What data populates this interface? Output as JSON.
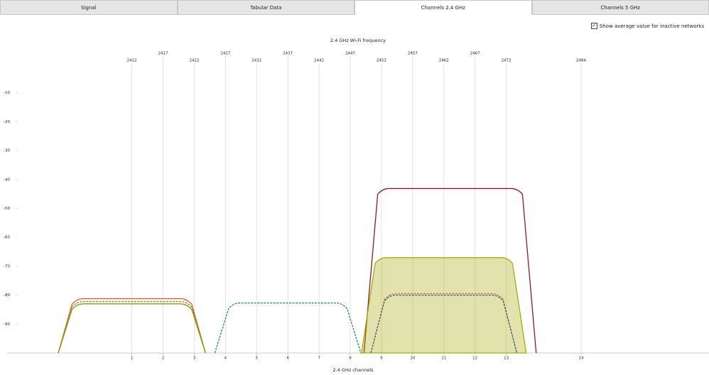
{
  "tabs": [
    "Signal",
    "Tabular Data",
    "Channels 2.4 GHz",
    "Channels 5 GHz"
  ],
  "active_tab": 2,
  "checkbox": {
    "label": "Show average value for inactive networks",
    "checked": true
  },
  "chart_data": {
    "type": "channel-curves",
    "title": "2.4 GHz Wi-Fi frequency",
    "xlabel": "2.4 GHz channels",
    "xlim": [
      2392,
      2504.5
    ],
    "ylim": [
      -100,
      0
    ],
    "yticks": [
      -10,
      -20,
      -30,
      -40,
      -50,
      -60,
      -70,
      -80,
      -90
    ],
    "top_xticks": [
      2412,
      2417,
      2422,
      2427,
      2432,
      2437,
      2442,
      2447,
      2452,
      2457,
      2462,
      2467,
      2472,
      2484
    ],
    "xticks": [
      {
        "value": 2412,
        "label": "1"
      },
      {
        "value": 2417,
        "label": "2"
      },
      {
        "value": 2422,
        "label": "3"
      },
      {
        "value": 2427,
        "label": "4"
      },
      {
        "value": 2432,
        "label": "5"
      },
      {
        "value": 2437,
        "label": "6"
      },
      {
        "value": 2442,
        "label": "7"
      },
      {
        "value": 2447,
        "label": "8"
      },
      {
        "value": 2452,
        "label": "9"
      },
      {
        "value": 2457,
        "label": "10"
      },
      {
        "value": 2462,
        "label": "11"
      },
      {
        "value": 2467,
        "label": "12"
      },
      {
        "value": 2472,
        "label": "13"
      },
      {
        "value": 2484,
        "label": "14"
      }
    ],
    "series": [
      {
        "center": 2412,
        "width": 23.6,
        "value": -81.2,
        "color": "#e8581c",
        "dashed": false,
        "filled": false
      },
      {
        "center": 2412,
        "width": 23.6,
        "value": -82.2,
        "color": "#6f8f3a",
        "dashed": true,
        "filled": false
      },
      {
        "center": 2412,
        "width": 23.6,
        "value": -83,
        "color": "#8a9a10",
        "dashed": false,
        "filled": false
      },
      {
        "center": 2437,
        "width": 23.4,
        "value": -82.7,
        "color": "#1f8e6a",
        "dashed": true,
        "filled": false
      },
      {
        "center": 2463,
        "width": 27.6,
        "value": -43.1,
        "color": "#8b1a2a",
        "dashed": false,
        "filled": false
      },
      {
        "center": 2462,
        "width": 26.4,
        "value": -67,
        "color": "#a8ac10",
        "dashed": false,
        "filled": true
      },
      {
        "center": 2462,
        "width": 23.4,
        "value": -79.5,
        "color": "#d0606a",
        "dashed": true,
        "filled": false
      },
      {
        "center": 2462,
        "width": 23.4,
        "value": -80,
        "color": "#3e6e6a",
        "dashed": true,
        "filled": false
      }
    ]
  }
}
